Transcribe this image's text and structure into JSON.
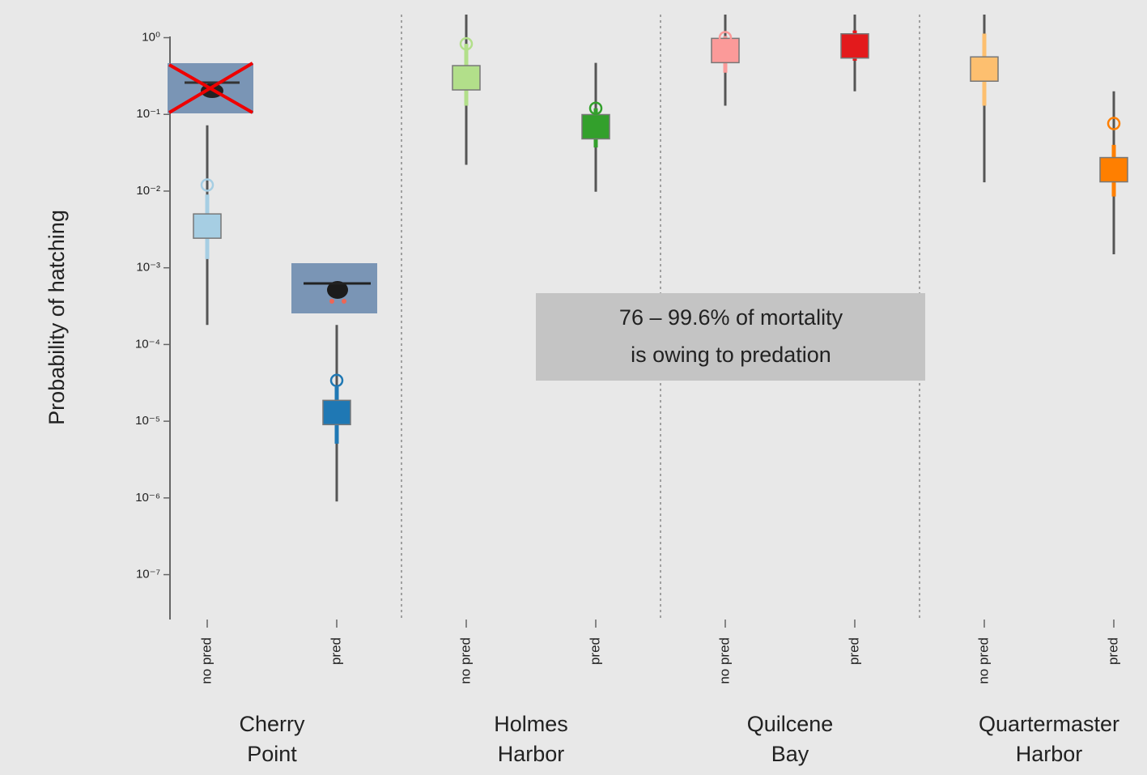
{
  "chart_data": {
    "type": "interval",
    "y_label": "Probability of hatching",
    "log_scale": true,
    "ylim": [
      2.6e-08,
      2.0
    ],
    "yticks": [
      {
        "value": 1,
        "label": "10⁰"
      },
      {
        "value": 0.1,
        "label": "10⁻¹"
      },
      {
        "value": 0.01,
        "label": "10⁻²"
      },
      {
        "value": 0.001,
        "label": "10⁻³"
      },
      {
        "value": 0.0001,
        "label": "10⁻⁴"
      },
      {
        "value": 1e-05,
        "label": "10⁻⁵"
      },
      {
        "value": 1e-06,
        "label": "10⁻⁶"
      },
      {
        "value": 1e-07,
        "label": "10⁻⁷"
      }
    ],
    "categories": [
      "no pred",
      "pred",
      "no pred",
      "pred",
      "no pred",
      "pred",
      "no pred",
      "pred"
    ],
    "groups": [
      {
        "label": [
          "Cherry",
          "Point"
        ]
      },
      {
        "label": [
          "Holmes",
          "Harbor"
        ]
      },
      {
        "label": [
          "Quilcene",
          "Bay"
        ]
      },
      {
        "label": [
          "Quartermaster",
          "Harbor"
        ]
      }
    ],
    "colors": [
      "#a6cee3",
      "#1f78b4",
      "#b2df8a",
      "#33a02c",
      "#fb9a99",
      "#e31a1c",
      "#fdbf6f",
      "#ff7f00"
    ],
    "values": [
      0.0035,
      1.3e-05,
      0.3,
      0.069,
      0.68,
      0.78,
      0.39,
      0.019
    ],
    "lower": [
      0.00018,
      9e-07,
      0.022,
      0.0098,
      0.13,
      0.2,
      0.013,
      0.0015
    ],
    "upper": [
      0.072,
      0.00018,
      2.0,
      0.47,
      2.0,
      2.0,
      2.0,
      0.2
    ],
    "inner_lower": [
      0.0013,
      5.1e-06,
      0.13,
      0.037,
      0.35,
      0.5,
      0.13,
      0.0085
    ],
    "inner_upper": [
      0.009,
      2.8e-05,
      0.83,
      0.12,
      1.05,
      1.24,
      1.13,
      0.04
    ],
    "observed": [
      0.012,
      3.4e-05,
      0.83,
      0.12,
      1.0,
      null,
      null,
      0.076
    ],
    "annotation": [
      "76 – 99.6% of mortality",
      "is owing to predation"
    ]
  }
}
